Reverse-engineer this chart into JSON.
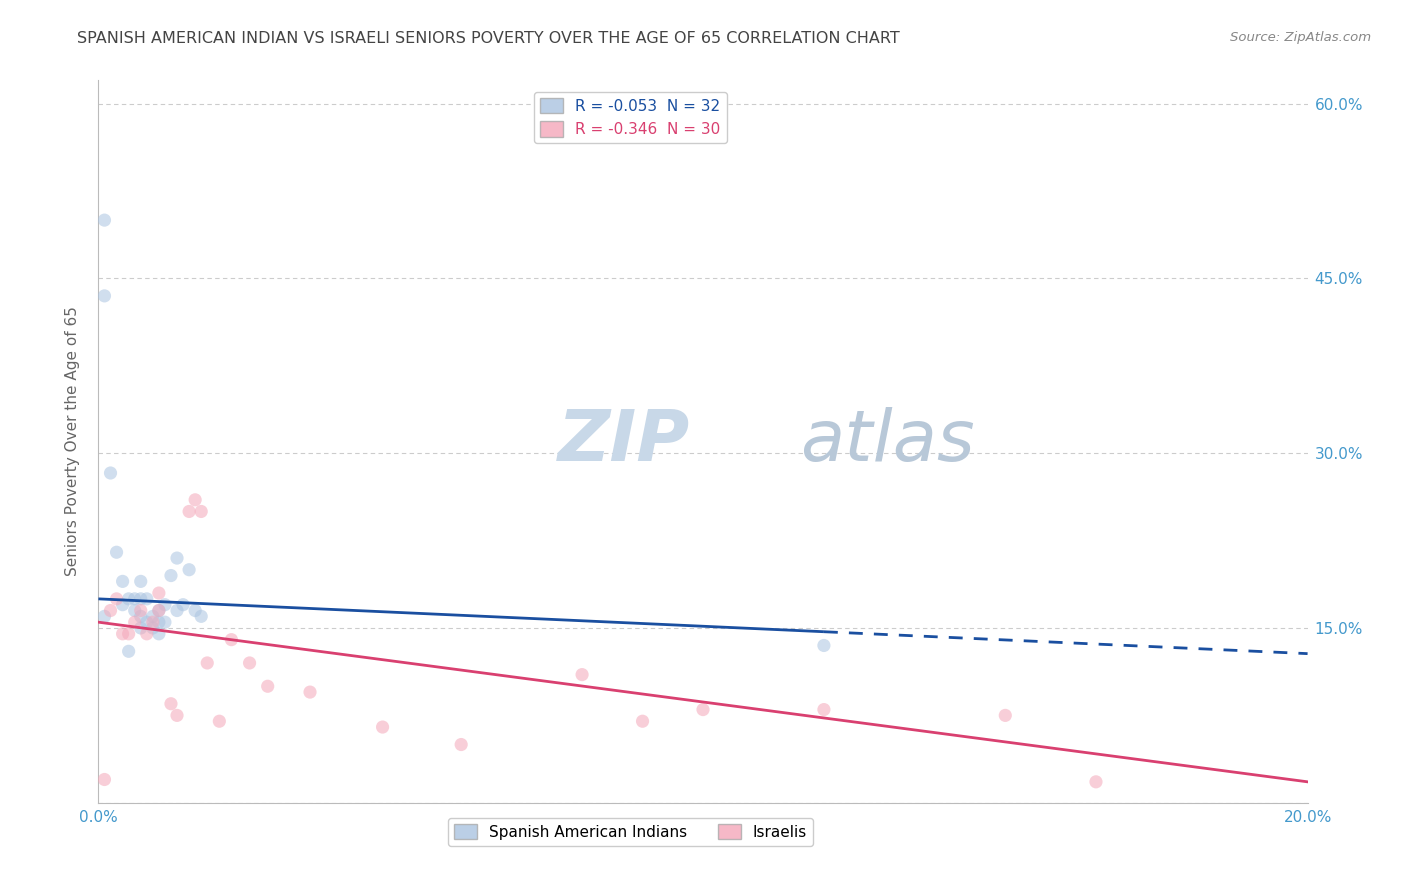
{
  "title": "SPANISH AMERICAN INDIAN VS ISRAELI SENIORS POVERTY OVER THE AGE OF 65 CORRELATION CHART",
  "source": "Source: ZipAtlas.com",
  "ylabel": "Seniors Poverty Over the Age of 65",
  "legend1_label": "R = -0.053  N = 32",
  "legend2_label": "R = -0.346  N = 30",
  "legend1_bottom": "Spanish American Indians",
  "legend2_bottom": "Israelis",
  "watermark_zip": "ZIP",
  "watermark_atlas": "atlas",
  "xlim": [
    0.0,
    0.2
  ],
  "ylim": [
    0.0,
    0.62
  ],
  "blue_scatter_x": [
    0.001,
    0.001,
    0.002,
    0.003,
    0.004,
    0.004,
    0.005,
    0.005,
    0.006,
    0.006,
    0.007,
    0.007,
    0.007,
    0.007,
    0.008,
    0.008,
    0.009,
    0.009,
    0.01,
    0.01,
    0.01,
    0.011,
    0.011,
    0.012,
    0.013,
    0.013,
    0.014,
    0.015,
    0.016,
    0.017,
    0.12,
    0.001
  ],
  "blue_scatter_y": [
    0.5,
    0.16,
    0.283,
    0.215,
    0.17,
    0.19,
    0.175,
    0.13,
    0.175,
    0.165,
    0.19,
    0.175,
    0.16,
    0.15,
    0.175,
    0.155,
    0.16,
    0.15,
    0.165,
    0.155,
    0.145,
    0.17,
    0.155,
    0.195,
    0.21,
    0.165,
    0.17,
    0.2,
    0.165,
    0.16,
    0.135,
    0.435
  ],
  "pink_scatter_x": [
    0.001,
    0.002,
    0.003,
    0.004,
    0.005,
    0.006,
    0.007,
    0.008,
    0.009,
    0.01,
    0.01,
    0.012,
    0.013,
    0.015,
    0.016,
    0.017,
    0.018,
    0.02,
    0.022,
    0.025,
    0.028,
    0.035,
    0.047,
    0.06,
    0.08,
    0.09,
    0.1,
    0.12,
    0.15,
    0.165
  ],
  "pink_scatter_y": [
    0.02,
    0.165,
    0.175,
    0.145,
    0.145,
    0.155,
    0.165,
    0.145,
    0.155,
    0.165,
    0.18,
    0.085,
    0.075,
    0.25,
    0.26,
    0.25,
    0.12,
    0.07,
    0.14,
    0.12,
    0.1,
    0.095,
    0.065,
    0.05,
    0.11,
    0.07,
    0.08,
    0.08,
    0.075,
    0.018
  ],
  "blue_color": "#aac4e0",
  "pink_color": "#f4a7b9",
  "blue_line_color": "#1a4fa0",
  "pink_line_color": "#d94070",
  "bg_color": "#ffffff",
  "grid_color": "#cccccc",
  "title_color": "#444444",
  "axis_tick_color": "#4499cc",
  "source_color": "#888888",
  "title_fontsize": 11.5,
  "source_fontsize": 9.5,
  "watermark_fontsize_zip": 52,
  "watermark_fontsize_atlas": 52,
  "watermark_color_zip": "#c8d8e8",
  "watermark_color_atlas": "#b8c8d8",
  "scatter_size": 90,
  "scatter_alpha": 0.55,
  "line_width": 2.0,
  "blue_line_solid_end": 0.12,
  "blue_line_start_y": 0.175,
  "blue_line_end_y": 0.128,
  "pink_line_start_y": 0.155,
  "pink_line_end_y": 0.018
}
